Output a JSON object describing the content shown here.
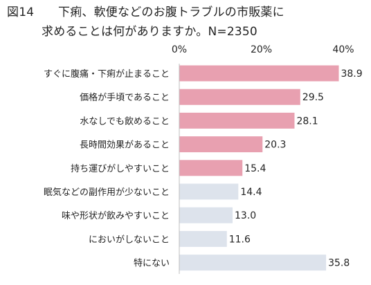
{
  "chart_data": {
    "type": "bar",
    "orientation": "horizontal",
    "figure_label": "図14",
    "title_line1": "下痢、軟便などのお腹トラブルの市販薬に",
    "title_line2": "求めることは何がありますか。N=2350",
    "xlim": [
      0,
      40
    ],
    "ticks": [
      0,
      20,
      40
    ],
    "tick_labels": [
      "0%",
      "20%",
      "40%"
    ],
    "categories": [
      "すぐに腹痛・下痢が止まること",
      "価格が手頃であること",
      "水なしでも飲めること",
      "長時間効果があること",
      "持ち運びがしやすいこと",
      "眠気などの副作用が少ないこと",
      "味や形状が飲みやすいこと",
      "においがしないこと",
      "特にない"
    ],
    "values": [
      38.9,
      29.5,
      28.1,
      20.3,
      15.4,
      14.4,
      13.0,
      11.6,
      35.8
    ],
    "value_labels": [
      "38.9",
      "29.5",
      "28.1",
      "20.3",
      "15.4",
      "14.4",
      "13.0",
      "11.6",
      "35.8"
    ],
    "colors": [
      "#e8a0b0",
      "#e8a0b0",
      "#e8a0b0",
      "#e8a0b0",
      "#e8a0b0",
      "#dde3ec",
      "#dde3ec",
      "#dde3ec",
      "#dde3ec"
    ],
    "axis_color": "#bfbfbf",
    "grid": false,
    "legend": "none"
  }
}
